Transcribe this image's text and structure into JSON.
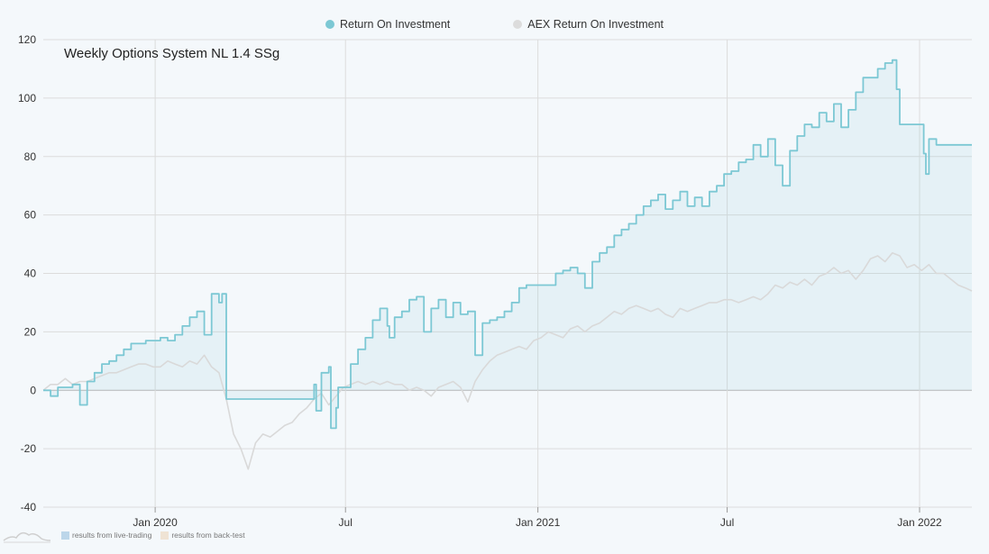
{
  "legend": {
    "series1": "Return On Investment",
    "series2": "AEX Return On Investment"
  },
  "footer": {
    "live_label": "results from live-trading",
    "backtest_label": "results from back-test"
  },
  "colors": {
    "roi": "#7cc8d4",
    "aex": "#d9d9d9",
    "live_swatch": "#bcd6ea",
    "backtest_swatch": "#efe3d4",
    "grid": "#dcdcdc",
    "zero_line": "#b5b5b5"
  },
  "icons": {
    "logo": "mountain-logo-icon"
  },
  "chart_data": {
    "type": "line",
    "title": "Weekly Options System NL 1.4 SSg",
    "x_start": "2019-09-16",
    "x_end": "2022-02-20",
    "ylim": [
      -40,
      120
    ],
    "yticks": [
      -40,
      -20,
      0,
      20,
      40,
      60,
      80,
      100,
      120
    ],
    "xticks": [
      {
        "date": "2020-01-01",
        "label": "Jan 2020"
      },
      {
        "date": "2020-07-01",
        "label": "Jul"
      },
      {
        "date": "2021-01-01",
        "label": "Jan 2021"
      },
      {
        "date": "2021-07-01",
        "label": "Jul"
      },
      {
        "date": "2022-01-01",
        "label": "Jan 2022"
      }
    ],
    "grid": true,
    "legend_position": "top-center",
    "series": [
      {
        "name": "Return On Investment",
        "area": true,
        "points": [
          [
            "2019-09-16",
            0
          ],
          [
            "2019-09-23",
            -2
          ],
          [
            "2019-09-30",
            1
          ],
          [
            "2019-10-07",
            1
          ],
          [
            "2019-10-14",
            2
          ],
          [
            "2019-10-21",
            -5
          ],
          [
            "2019-10-28",
            3
          ],
          [
            "2019-11-04",
            6
          ],
          [
            "2019-11-11",
            9
          ],
          [
            "2019-11-18",
            10
          ],
          [
            "2019-11-25",
            12
          ],
          [
            "2019-12-02",
            14
          ],
          [
            "2019-12-09",
            16
          ],
          [
            "2019-12-16",
            16
          ],
          [
            "2019-12-23",
            17
          ],
          [
            "2019-12-30",
            17
          ],
          [
            "2020-01-06",
            18
          ],
          [
            "2020-01-13",
            17
          ],
          [
            "2020-01-20",
            19
          ],
          [
            "2020-01-27",
            22
          ],
          [
            "2020-02-03",
            25
          ],
          [
            "2020-02-10",
            27
          ],
          [
            "2020-02-17",
            19
          ],
          [
            "2020-02-24",
            33
          ],
          [
            "2020-03-02",
            30
          ],
          [
            "2020-03-05",
            33
          ],
          [
            "2020-03-09",
            -3
          ],
          [
            "2020-03-16",
            -3
          ],
          [
            "2020-04-01",
            -3
          ],
          [
            "2020-05-01",
            -3
          ],
          [
            "2020-05-26",
            -3
          ],
          [
            "2020-06-01",
            2
          ],
          [
            "2020-06-03",
            -7
          ],
          [
            "2020-06-08",
            6
          ],
          [
            "2020-06-15",
            8
          ],
          [
            "2020-06-17",
            -13
          ],
          [
            "2020-06-20",
            -13
          ],
          [
            "2020-06-22",
            -6
          ],
          [
            "2020-06-24",
            1
          ],
          [
            "2020-07-01",
            1
          ],
          [
            "2020-07-06",
            9
          ],
          [
            "2020-07-13",
            14
          ],
          [
            "2020-07-20",
            18
          ],
          [
            "2020-07-27",
            24
          ],
          [
            "2020-08-03",
            28
          ],
          [
            "2020-08-10",
            22
          ],
          [
            "2020-08-12",
            18
          ],
          [
            "2020-08-17",
            25
          ],
          [
            "2020-08-24",
            27
          ],
          [
            "2020-08-31",
            31
          ],
          [
            "2020-09-07",
            32
          ],
          [
            "2020-09-14",
            20
          ],
          [
            "2020-09-21",
            28
          ],
          [
            "2020-09-28",
            31
          ],
          [
            "2020-10-05",
            25
          ],
          [
            "2020-10-12",
            30
          ],
          [
            "2020-10-19",
            26
          ],
          [
            "2020-10-26",
            27
          ],
          [
            "2020-11-02",
            12
          ],
          [
            "2020-11-09",
            23
          ],
          [
            "2020-11-16",
            24
          ],
          [
            "2020-11-23",
            25
          ],
          [
            "2020-11-30",
            27
          ],
          [
            "2020-12-07",
            30
          ],
          [
            "2020-12-14",
            35
          ],
          [
            "2020-12-21",
            36
          ],
          [
            "2020-12-28",
            36
          ],
          [
            "2021-01-04",
            36
          ],
          [
            "2021-01-11",
            36
          ],
          [
            "2021-01-18",
            40
          ],
          [
            "2021-01-25",
            41
          ],
          [
            "2021-02-01",
            42
          ],
          [
            "2021-02-08",
            40
          ],
          [
            "2021-02-15",
            35
          ],
          [
            "2021-02-22",
            44
          ],
          [
            "2021-03-01",
            47
          ],
          [
            "2021-03-08",
            49
          ],
          [
            "2021-03-15",
            53
          ],
          [
            "2021-03-22",
            55
          ],
          [
            "2021-03-29",
            57
          ],
          [
            "2021-04-05",
            60
          ],
          [
            "2021-04-12",
            63
          ],
          [
            "2021-04-19",
            65
          ],
          [
            "2021-04-26",
            67
          ],
          [
            "2021-05-03",
            62
          ],
          [
            "2021-05-10",
            65
          ],
          [
            "2021-05-17",
            68
          ],
          [
            "2021-05-24",
            63
          ],
          [
            "2021-05-31",
            66
          ],
          [
            "2021-06-07",
            63
          ],
          [
            "2021-06-14",
            68
          ],
          [
            "2021-06-21",
            70
          ],
          [
            "2021-06-28",
            74
          ],
          [
            "2021-07-05",
            75
          ],
          [
            "2021-07-12",
            78
          ],
          [
            "2021-07-19",
            79
          ],
          [
            "2021-07-26",
            84
          ],
          [
            "2021-08-02",
            80
          ],
          [
            "2021-08-09",
            86
          ],
          [
            "2021-08-16",
            77
          ],
          [
            "2021-08-23",
            70
          ],
          [
            "2021-08-30",
            82
          ],
          [
            "2021-09-06",
            87
          ],
          [
            "2021-09-13",
            91
          ],
          [
            "2021-09-20",
            90
          ],
          [
            "2021-09-27",
            95
          ],
          [
            "2021-10-04",
            92
          ],
          [
            "2021-10-11",
            98
          ],
          [
            "2021-10-18",
            90
          ],
          [
            "2021-10-25",
            96
          ],
          [
            "2021-11-01",
            102
          ],
          [
            "2021-11-08",
            107
          ],
          [
            "2021-11-15",
            107
          ],
          [
            "2021-11-22",
            110
          ],
          [
            "2021-11-29",
            112
          ],
          [
            "2021-12-06",
            113
          ],
          [
            "2021-12-10",
            103
          ],
          [
            "2021-12-13",
            91
          ],
          [
            "2021-12-20",
            91
          ],
          [
            "2022-01-01",
            91
          ],
          [
            "2022-01-03",
            91
          ],
          [
            "2022-01-05",
            81
          ],
          [
            "2022-01-07",
            74
          ],
          [
            "2022-01-10",
            86
          ],
          [
            "2022-01-17",
            84
          ],
          [
            "2022-01-24",
            84
          ],
          [
            "2022-02-20",
            84
          ]
        ]
      },
      {
        "name": "AEX Return On Investment",
        "area": false,
        "points": [
          [
            "2019-09-16",
            0
          ],
          [
            "2019-09-23",
            2
          ],
          [
            "2019-09-30",
            2
          ],
          [
            "2019-10-07",
            4
          ],
          [
            "2019-10-14",
            2
          ],
          [
            "2019-10-21",
            3
          ],
          [
            "2019-10-28",
            3
          ],
          [
            "2019-11-04",
            4
          ],
          [
            "2019-11-11",
            5
          ],
          [
            "2019-11-18",
            6
          ],
          [
            "2019-11-25",
            6
          ],
          [
            "2019-12-02",
            7
          ],
          [
            "2019-12-09",
            8
          ],
          [
            "2019-12-16",
            9
          ],
          [
            "2019-12-23",
            9
          ],
          [
            "2019-12-30",
            8
          ],
          [
            "2020-01-06",
            8
          ],
          [
            "2020-01-13",
            10
          ],
          [
            "2020-01-20",
            9
          ],
          [
            "2020-01-27",
            8
          ],
          [
            "2020-02-03",
            10
          ],
          [
            "2020-02-10",
            9
          ],
          [
            "2020-02-17",
            12
          ],
          [
            "2020-02-24",
            8
          ],
          [
            "2020-03-02",
            6
          ],
          [
            "2020-03-09",
            -3
          ],
          [
            "2020-03-16",
            -15
          ],
          [
            "2020-03-23",
            -20
          ],
          [
            "2020-03-30",
            -27
          ],
          [
            "2020-04-06",
            -18
          ],
          [
            "2020-04-13",
            -15
          ],
          [
            "2020-04-20",
            -16
          ],
          [
            "2020-04-27",
            -14
          ],
          [
            "2020-05-04",
            -12
          ],
          [
            "2020-05-11",
            -11
          ],
          [
            "2020-05-18",
            -8
          ],
          [
            "2020-05-25",
            -6
          ],
          [
            "2020-06-01",
            -3
          ],
          [
            "2020-06-08",
            -1
          ],
          [
            "2020-06-15",
            -5
          ],
          [
            "2020-06-22",
            -2
          ],
          [
            "2020-06-29",
            1
          ],
          [
            "2020-07-06",
            2
          ],
          [
            "2020-07-13",
            3
          ],
          [
            "2020-07-20",
            2
          ],
          [
            "2020-07-27",
            3
          ],
          [
            "2020-08-03",
            2
          ],
          [
            "2020-08-10",
            3
          ],
          [
            "2020-08-17",
            2
          ],
          [
            "2020-08-24",
            2
          ],
          [
            "2020-08-31",
            0
          ],
          [
            "2020-09-07",
            1
          ],
          [
            "2020-09-14",
            0
          ],
          [
            "2020-09-21",
            -2
          ],
          [
            "2020-09-28",
            1
          ],
          [
            "2020-10-05",
            2
          ],
          [
            "2020-10-12",
            3
          ],
          [
            "2020-10-19",
            1
          ],
          [
            "2020-10-26",
            -4
          ],
          [
            "2020-11-02",
            3
          ],
          [
            "2020-11-09",
            7
          ],
          [
            "2020-11-16",
            10
          ],
          [
            "2020-11-23",
            12
          ],
          [
            "2020-11-30",
            13
          ],
          [
            "2020-12-07",
            14
          ],
          [
            "2020-12-14",
            15
          ],
          [
            "2020-12-21",
            14
          ],
          [
            "2020-12-28",
            17
          ],
          [
            "2021-01-04",
            18
          ],
          [
            "2021-01-11",
            20
          ],
          [
            "2021-01-18",
            19
          ],
          [
            "2021-01-25",
            18
          ],
          [
            "2021-02-01",
            21
          ],
          [
            "2021-02-08",
            22
          ],
          [
            "2021-02-15",
            20
          ],
          [
            "2021-02-22",
            22
          ],
          [
            "2021-03-01",
            23
          ],
          [
            "2021-03-08",
            25
          ],
          [
            "2021-03-15",
            27
          ],
          [
            "2021-03-22",
            26
          ],
          [
            "2021-03-29",
            28
          ],
          [
            "2021-04-05",
            29
          ],
          [
            "2021-04-12",
            28
          ],
          [
            "2021-04-19",
            27
          ],
          [
            "2021-04-26",
            28
          ],
          [
            "2021-05-03",
            26
          ],
          [
            "2021-05-10",
            25
          ],
          [
            "2021-05-17",
            28
          ],
          [
            "2021-05-24",
            27
          ],
          [
            "2021-05-31",
            28
          ],
          [
            "2021-06-07",
            29
          ],
          [
            "2021-06-14",
            30
          ],
          [
            "2021-06-21",
            30
          ],
          [
            "2021-06-28",
            31
          ],
          [
            "2021-07-05",
            31
          ],
          [
            "2021-07-12",
            30
          ],
          [
            "2021-07-19",
            31
          ],
          [
            "2021-07-26",
            32
          ],
          [
            "2021-08-02",
            31
          ],
          [
            "2021-08-09",
            33
          ],
          [
            "2021-08-16",
            36
          ],
          [
            "2021-08-23",
            35
          ],
          [
            "2021-08-30",
            37
          ],
          [
            "2021-09-06",
            36
          ],
          [
            "2021-09-13",
            38
          ],
          [
            "2021-09-20",
            36
          ],
          [
            "2021-09-27",
            39
          ],
          [
            "2021-10-04",
            40
          ],
          [
            "2021-10-11",
            42
          ],
          [
            "2021-10-18",
            40
          ],
          [
            "2021-10-25",
            41
          ],
          [
            "2021-11-01",
            38
          ],
          [
            "2021-11-08",
            41
          ],
          [
            "2021-11-15",
            45
          ],
          [
            "2021-11-22",
            46
          ],
          [
            "2021-11-29",
            44
          ],
          [
            "2021-12-06",
            47
          ],
          [
            "2021-12-13",
            46
          ],
          [
            "2021-12-20",
            42
          ],
          [
            "2021-12-27",
            43
          ],
          [
            "2022-01-03",
            41
          ],
          [
            "2022-01-10",
            43
          ],
          [
            "2022-01-17",
            40
          ],
          [
            "2022-01-24",
            40
          ],
          [
            "2022-01-31",
            38
          ],
          [
            "2022-02-07",
            36
          ],
          [
            "2022-02-14",
            35
          ],
          [
            "2022-02-20",
            34
          ]
        ]
      }
    ]
  }
}
